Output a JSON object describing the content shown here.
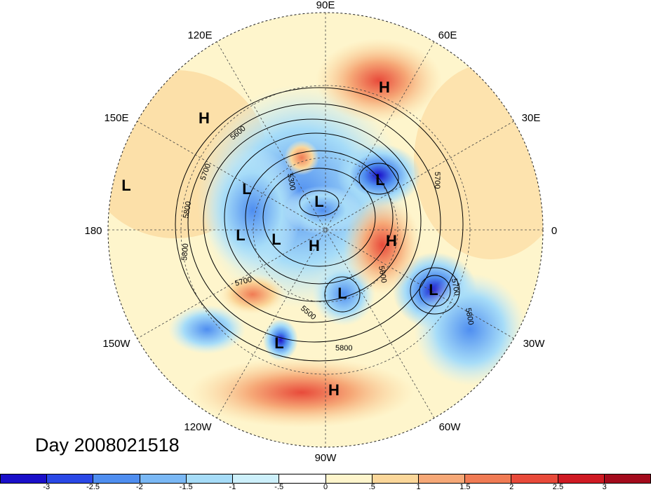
{
  "title": "Day 2008021518",
  "longitude_labels": [
    {
      "id": "lon-90e",
      "text": "90E"
    },
    {
      "id": "lon-60e",
      "text": "60E"
    },
    {
      "id": "lon-30e",
      "text": "30E"
    },
    {
      "id": "lon-0",
      "text": "0"
    },
    {
      "id": "lon-30w",
      "text": "30W"
    },
    {
      "id": "lon-60w",
      "text": "60W"
    },
    {
      "id": "lon-90w",
      "text": "90W"
    },
    {
      "id": "lon-120w",
      "text": "120W"
    },
    {
      "id": "lon-150w",
      "text": "150W"
    },
    {
      "id": "lon-180",
      "text": "180"
    },
    {
      "id": "lon-150e",
      "text": "150E"
    },
    {
      "id": "lon-120e",
      "text": "120E"
    }
  ],
  "pressure_centers": [
    "H",
    "L",
    "L",
    "L",
    "L",
    "L",
    "L",
    "H",
    "H",
    "L",
    "L",
    "L",
    "H",
    "H"
  ],
  "contour_labels": [
    "5300",
    "5600",
    "5700",
    "5800",
    "5800",
    "5700",
    "5500",
    "5600",
    "5700",
    "5800",
    "5800",
    "5700"
  ],
  "colorbar": {
    "colors": [
      "#1a0fc9",
      "#2a48e6",
      "#4f8ef0",
      "#7ab8f5",
      "#a6dcf8",
      "#cdf0fb",
      "#ffffff",
      "#fef5cc",
      "#fbd79a",
      "#f6a877",
      "#f07b54",
      "#e84a3a",
      "#cf1a23",
      "#a30a1c"
    ],
    "tick_labels": [
      "-3",
      "-2.5",
      "-2",
      "-1.5",
      "-1",
      "-.5",
      "0",
      ".5",
      "1",
      "1.5",
      "2",
      "2.5",
      "3"
    ]
  }
}
